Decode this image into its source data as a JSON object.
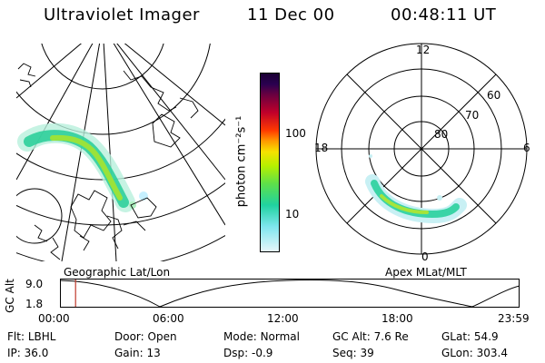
{
  "header": {
    "title": "Ultraviolet Imager",
    "date": "11 Dec 00",
    "time": "00:48:11 UT"
  },
  "colorbar": {
    "label": "photon cm⁻²s⁻¹",
    "ticks": [
      "100",
      "10"
    ]
  },
  "polar": {
    "hour_labels": {
      "top": "12",
      "left": "18",
      "right": "6",
      "bottom": "0"
    },
    "lat_labels": [
      "80",
      "70",
      "60"
    ]
  },
  "plot_titles": {
    "left": "Geographic Lat/Lon",
    "right": "Apex MLat/MLT"
  },
  "altitude_plot": {
    "y_label": "GC Alt",
    "y_ticks": [
      "9.0",
      "1.8"
    ],
    "x_ticks": [
      "00:00",
      "06:00",
      "12:00",
      "18:00",
      "23:59"
    ],
    "marker_fraction": 0.034
  },
  "status": {
    "row1": [
      {
        "key": "Flt:",
        "value": "LBHL"
      },
      {
        "key": "Door:",
        "value": "Open"
      },
      {
        "key": "Mode:",
        "value": "Normal"
      },
      {
        "key": "GC Alt:",
        "value": "7.6 Re"
      },
      {
        "key": "GLat:",
        "value": "54.9"
      }
    ],
    "row2": [
      {
        "key": "IP:",
        "value": "36.0"
      },
      {
        "key": "Gain:",
        "value": "13"
      },
      {
        "key": "Dsp:",
        "value": "-0.9"
      },
      {
        "key": "Seq:",
        "value": "39"
      },
      {
        "key": "GLon:",
        "value": "303.4"
      }
    ]
  },
  "colors": {
    "background": "#ffffff",
    "foreground": "#000000",
    "marker": "#c0392b"
  }
}
